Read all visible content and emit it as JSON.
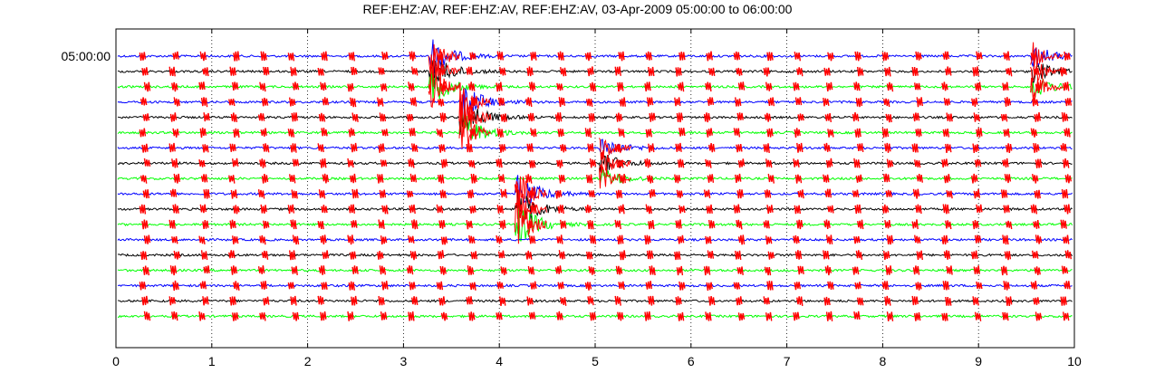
{
  "chart_data": {
    "type": "line",
    "title": "REF:EHZ:AV, REF:EHZ:AV, REF:EHZ:AV, 03-Apr-2009 05:00:00 to 06:00:00",
    "row_label": "05:00:00",
    "xlabel": "",
    "ylabel": "",
    "xlim": [
      0,
      10
    ],
    "x_ticks": [
      0,
      1,
      2,
      3,
      4,
      5,
      6,
      7,
      8,
      9,
      10
    ],
    "grid": "vertical dotted",
    "trace_colors": [
      "#0000ff",
      "#000000",
      "#00ff00"
    ],
    "pick_color": "#ff0000",
    "trace_count": 18,
    "noise_amplitude": 1.2,
    "regular_pick_period": 0.31,
    "regular_pick_count": 32,
    "events": [
      {
        "x": 3.3,
        "start_row": 0,
        "rows": 3,
        "amplitude": 22
      },
      {
        "x": 3.62,
        "start_row": 3,
        "rows": 3,
        "amplitude": 24
      },
      {
        "x": 5.08,
        "start_row": 6,
        "rows": 3,
        "amplitude": 13
      },
      {
        "x": 4.2,
        "start_row": 9,
        "rows": 3,
        "amplitude": 26
      },
      {
        "x": 9.58,
        "start_row": 0,
        "rows": 3,
        "amplitude": 14
      }
    ]
  }
}
